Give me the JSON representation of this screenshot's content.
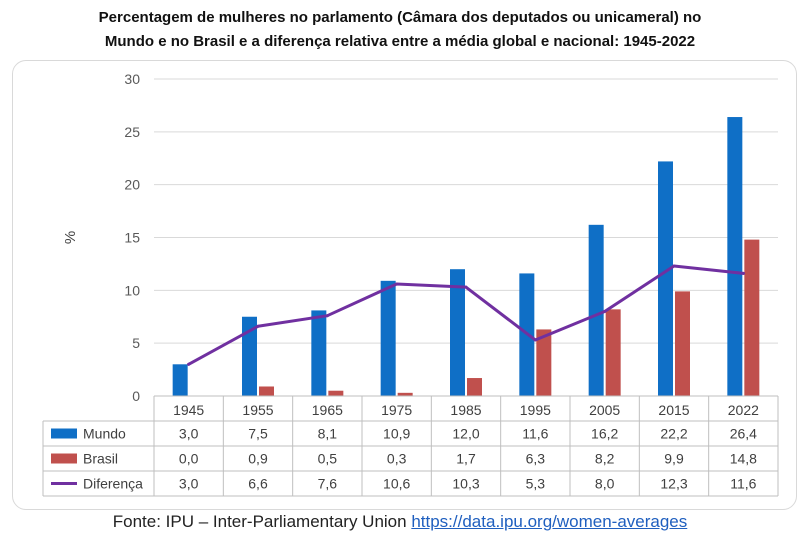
{
  "title_line1": "Percentagem de mulheres no parlamento (Câmara dos deputados ou unicameral) no",
  "title_line2": "Mundo e no Brasil e a diferença relativa entre a média global e nacional: 1945-2022",
  "source": {
    "label": "Fonte: IPU – Inter-Parliamentary Union",
    "link_text": "https://data.ipu.org/women-averages"
  },
  "chart_data": {
    "type": "bar",
    "title": "Percentagem de mulheres no parlamento (Câmara dos deputados ou unicameral) no Mundo e no Brasil e a diferença relativa entre a média global e nacional: 1945-2022",
    "xlabel": "",
    "ylabel": "%",
    "ylim": [
      0,
      30
    ],
    "yticks": [
      0,
      5,
      10,
      15,
      20,
      25,
      30
    ],
    "grid": true,
    "legend": "data-table",
    "categories": [
      "1945",
      "1955",
      "1965",
      "1975",
      "1985",
      "1995",
      "2005",
      "2015",
      "2022"
    ],
    "series": [
      {
        "name": "Mundo",
        "kind": "bar",
        "color": "#0f6fc6",
        "values": [
          3.0,
          7.5,
          8.1,
          10.9,
          12.0,
          11.6,
          16.2,
          22.2,
          26.4
        ],
        "labels": [
          "3,0",
          "7,5",
          "8,1",
          "10,9",
          "12,0",
          "11,6",
          "16,2",
          "22,2",
          "26,4"
        ]
      },
      {
        "name": "Brasil",
        "kind": "bar",
        "color": "#c0504d",
        "values": [
          0.0,
          0.9,
          0.5,
          0.3,
          1.7,
          6.3,
          8.2,
          9.9,
          14.8
        ],
        "labels": [
          "0,0",
          "0,9",
          "0,5",
          "0,3",
          "1,7",
          "6,3",
          "8,2",
          "9,9",
          "14,8"
        ]
      },
      {
        "name": "Diferença",
        "kind": "line",
        "color": "#7030a0",
        "values": [
          3.0,
          6.6,
          7.6,
          10.6,
          10.3,
          5.3,
          8.0,
          12.3,
          11.6
        ],
        "labels": [
          "3,0",
          "6,6",
          "7,6",
          "10,6",
          "10,3",
          "5,3",
          "8,0",
          "12,3",
          "11,6"
        ]
      }
    ]
  }
}
